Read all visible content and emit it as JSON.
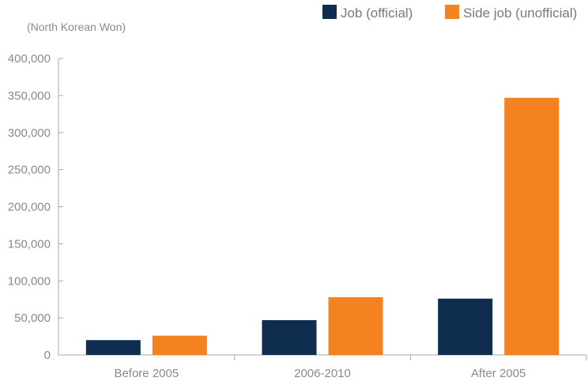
{
  "chart_data": {
    "type": "bar",
    "title": "",
    "unit_label": "(North Korean Won)",
    "xlabel": "",
    "ylabel": "",
    "categories": [
      "Before 2005",
      "2006-2010",
      "After 2005"
    ],
    "series": [
      {
        "name": "Job (official)",
        "color": "#0e2d4f",
        "values": [
          20000,
          47000,
          76000
        ]
      },
      {
        "name": "Side job (unofficial)",
        "color": "#f48221",
        "values": [
          26000,
          78000,
          347000
        ]
      }
    ],
    "ylim": [
      0,
      400000
    ],
    "yticks": [
      0,
      50000,
      100000,
      150000,
      200000,
      250000,
      300000,
      350000,
      400000
    ],
    "ytick_labels": [
      "0",
      "50,000",
      "100,000",
      "150,000",
      "200,000",
      "250,000",
      "300,000",
      "350,000",
      "400,000"
    ],
    "grid": false,
    "legend_position": "top-right"
  }
}
